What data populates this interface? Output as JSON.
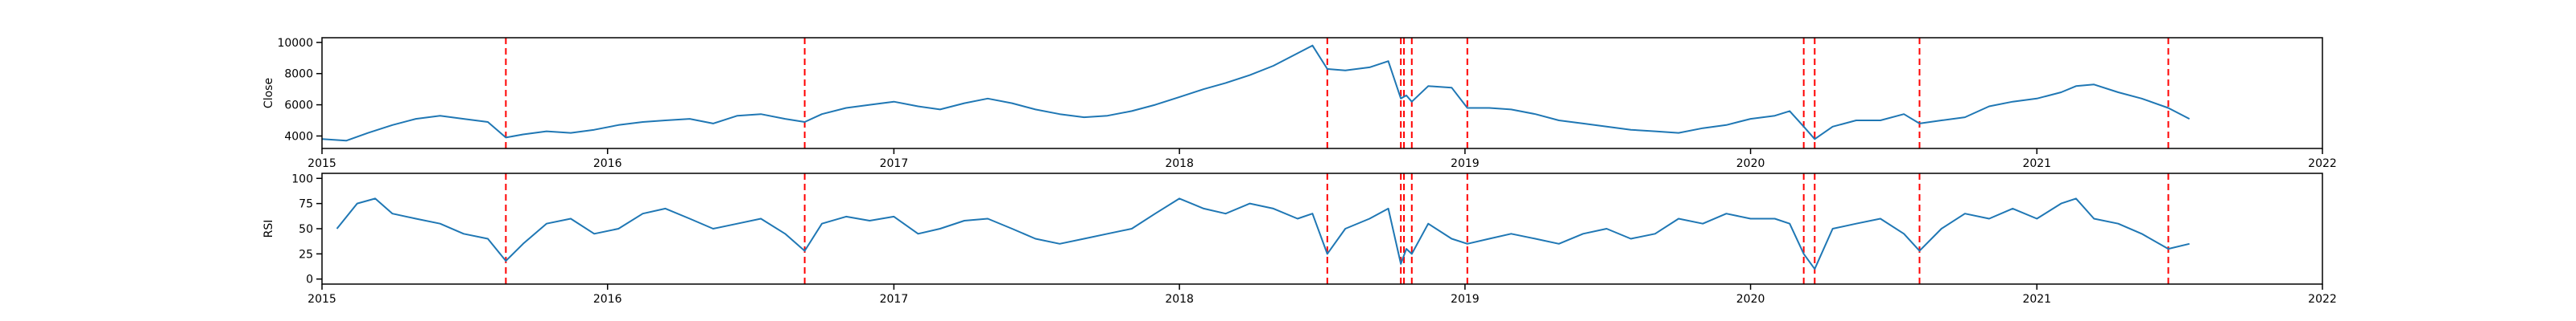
{
  "colors": {
    "line": "#1f77b4",
    "marker": "#ff0000",
    "axes": "#000000",
    "background": "#ffffff"
  },
  "event_dates": [
    "2015-08-24",
    "2016-09-09",
    "2018-07-09",
    "2018-10-11",
    "2018-10-15",
    "2018-10-25",
    "2019-01-04",
    "2020-03-09",
    "2020-03-23",
    "2020-08-04",
    "2021-06-18"
  ],
  "chart_data": [
    {
      "type": "line",
      "title": "",
      "xlabel": "",
      "ylabel": "Close",
      "xlim": [
        "2015-01-01",
        "2022-01-01"
      ],
      "ylim": [
        3200,
        10300
      ],
      "xticks": [
        "2015",
        "2016",
        "2017",
        "2018",
        "2019",
        "2020",
        "2021",
        "2022"
      ],
      "yticks": [
        "4000",
        "6000",
        "8000",
        "10000"
      ],
      "grid": false,
      "vertical_markers": "dashed red lines at event_dates",
      "series": [
        {
          "x": [
            "2015-01-01",
            "2015-02-01",
            "2015-03-01",
            "2015-04-01",
            "2015-05-01",
            "2015-06-01",
            "2015-07-01",
            "2015-08-01",
            "2015-08-24",
            "2015-09-15",
            "2015-10-15",
            "2015-11-15",
            "2015-12-15",
            "2016-01-15",
            "2016-02-15",
            "2016-03-15",
            "2016-04-15",
            "2016-05-15",
            "2016-06-15",
            "2016-07-15",
            "2016-08-15",
            "2016-09-09",
            "2016-10-01",
            "2016-11-01",
            "2016-12-01",
            "2017-01-01",
            "2017-02-01",
            "2017-03-01",
            "2017-04-01",
            "2017-05-01",
            "2017-06-01",
            "2017-07-01",
            "2017-08-01",
            "2017-09-01",
            "2017-10-01",
            "2017-11-01",
            "2017-12-01",
            "2018-01-01",
            "2018-02-01",
            "2018-03-01",
            "2018-04-01",
            "2018-05-01",
            "2018-06-01",
            "2018-06-20",
            "2018-07-09",
            "2018-08-01",
            "2018-09-01",
            "2018-09-25",
            "2018-10-11",
            "2018-10-18",
            "2018-10-25",
            "2018-11-15",
            "2018-12-15",
            "2019-01-04",
            "2019-02-01",
            "2019-03-01",
            "2019-04-01",
            "2019-05-01",
            "2019-06-01",
            "2019-07-01",
            "2019-08-01",
            "2019-09-01",
            "2019-10-01",
            "2019-11-01",
            "2019-12-01",
            "2020-01-01",
            "2020-02-01",
            "2020-02-20",
            "2020-03-09",
            "2020-03-23",
            "2020-04-15",
            "2020-05-15",
            "2020-06-15",
            "2020-07-15",
            "2020-08-04",
            "2020-09-01",
            "2020-10-01",
            "2020-11-01",
            "2020-12-01",
            "2021-01-01",
            "2021-02-01",
            "2021-02-20",
            "2021-03-15",
            "2021-04-15",
            "2021-05-15",
            "2021-06-18",
            "2021-07-15"
          ],
          "y": [
            3800,
            3700,
            4200,
            4700,
            5100,
            5300,
            5100,
            4900,
            3900,
            4100,
            4300,
            4200,
            4400,
            4700,
            4900,
            5000,
            5100,
            4800,
            5300,
            5400,
            5100,
            4900,
            5400,
            5800,
            6000,
            6200,
            5900,
            5700,
            6100,
            6400,
            6100,
            5700,
            5400,
            5200,
            5300,
            5600,
            6000,
            6500,
            7000,
            7400,
            7900,
            8500,
            9300,
            9800,
            8300,
            8200,
            8400,
            8800,
            6400,
            6600,
            6200,
            7200,
            7100,
            5800,
            5800,
            5700,
            5400,
            5000,
            4800,
            4600,
            4400,
            4300,
            4200,
            4500,
            4700,
            5100,
            5300,
            5600,
            4600,
            3800,
            4600,
            5000,
            5000,
            5400,
            4800,
            5000,
            5200,
            5900,
            6200,
            6400,
            6800,
            7200,
            7300,
            6800,
            6400,
            5800,
            5100
          ]
        }
      ]
    },
    {
      "type": "line",
      "title": "",
      "xlabel": "",
      "ylabel": "RSI",
      "xlim": [
        "2015-01-01",
        "2022-01-01"
      ],
      "ylim": [
        -5,
        105
      ],
      "xticks": [
        "2015",
        "2016",
        "2017",
        "2018",
        "2019",
        "2020",
        "2021",
        "2022"
      ],
      "yticks": [
        "0",
        "25",
        "50",
        "75",
        "100"
      ],
      "grid": false,
      "vertical_markers": "dashed red lines at event_dates",
      "series": [
        {
          "x": [
            "2015-01-20",
            "2015-02-15",
            "2015-03-10",
            "2015-04-01",
            "2015-05-01",
            "2015-06-01",
            "2015-07-01",
            "2015-08-01",
            "2015-08-24",
            "2015-09-15",
            "2015-10-15",
            "2015-11-15",
            "2015-12-15",
            "2016-01-15",
            "2016-02-15",
            "2016-03-15",
            "2016-04-15",
            "2016-05-15",
            "2016-06-15",
            "2016-07-15",
            "2016-08-15",
            "2016-09-09",
            "2016-10-01",
            "2016-11-01",
            "2016-12-01",
            "2017-01-01",
            "2017-02-01",
            "2017-03-01",
            "2017-04-01",
            "2017-05-01",
            "2017-06-01",
            "2017-07-01",
            "2017-08-01",
            "2017-09-01",
            "2017-10-01",
            "2017-11-01",
            "2017-12-01",
            "2018-01-01",
            "2018-02-01",
            "2018-03-01",
            "2018-04-01",
            "2018-05-01",
            "2018-06-01",
            "2018-06-20",
            "2018-07-09",
            "2018-08-01",
            "2018-09-01",
            "2018-09-25",
            "2018-10-11",
            "2018-10-18",
            "2018-10-25",
            "2018-11-15",
            "2018-12-15",
            "2019-01-04",
            "2019-02-01",
            "2019-03-01",
            "2019-04-01",
            "2019-05-01",
            "2019-06-01",
            "2019-07-01",
            "2019-08-01",
            "2019-09-01",
            "2019-10-01",
            "2019-11-01",
            "2019-12-01",
            "2020-01-01",
            "2020-02-01",
            "2020-02-20",
            "2020-03-09",
            "2020-03-23",
            "2020-04-15",
            "2020-05-15",
            "2020-06-15",
            "2020-07-15",
            "2020-08-04",
            "2020-09-01",
            "2020-10-01",
            "2020-11-01",
            "2020-12-01",
            "2021-01-01",
            "2021-02-01",
            "2021-02-20",
            "2021-03-15",
            "2021-04-15",
            "2021-05-15",
            "2021-06-18",
            "2021-07-15"
          ],
          "y": [
            50,
            75,
            80,
            65,
            60,
            55,
            45,
            40,
            18,
            35,
            55,
            60,
            45,
            50,
            65,
            70,
            60,
            50,
            55,
            60,
            45,
            28,
            55,
            62,
            58,
            62,
            45,
            50,
            58,
            60,
            50,
            40,
            35,
            40,
            45,
            50,
            65,
            80,
            70,
            65,
            75,
            70,
            60,
            65,
            25,
            50,
            60,
            70,
            15,
            30,
            25,
            55,
            40,
            35,
            40,
            45,
            40,
            35,
            45,
            50,
            40,
            45,
            60,
            55,
            65,
            60,
            60,
            55,
            25,
            10,
            50,
            55,
            60,
            45,
            28,
            50,
            65,
            60,
            70,
            60,
            75,
            80,
            60,
            55,
            45,
            30,
            35
          ]
        }
      ]
    }
  ]
}
